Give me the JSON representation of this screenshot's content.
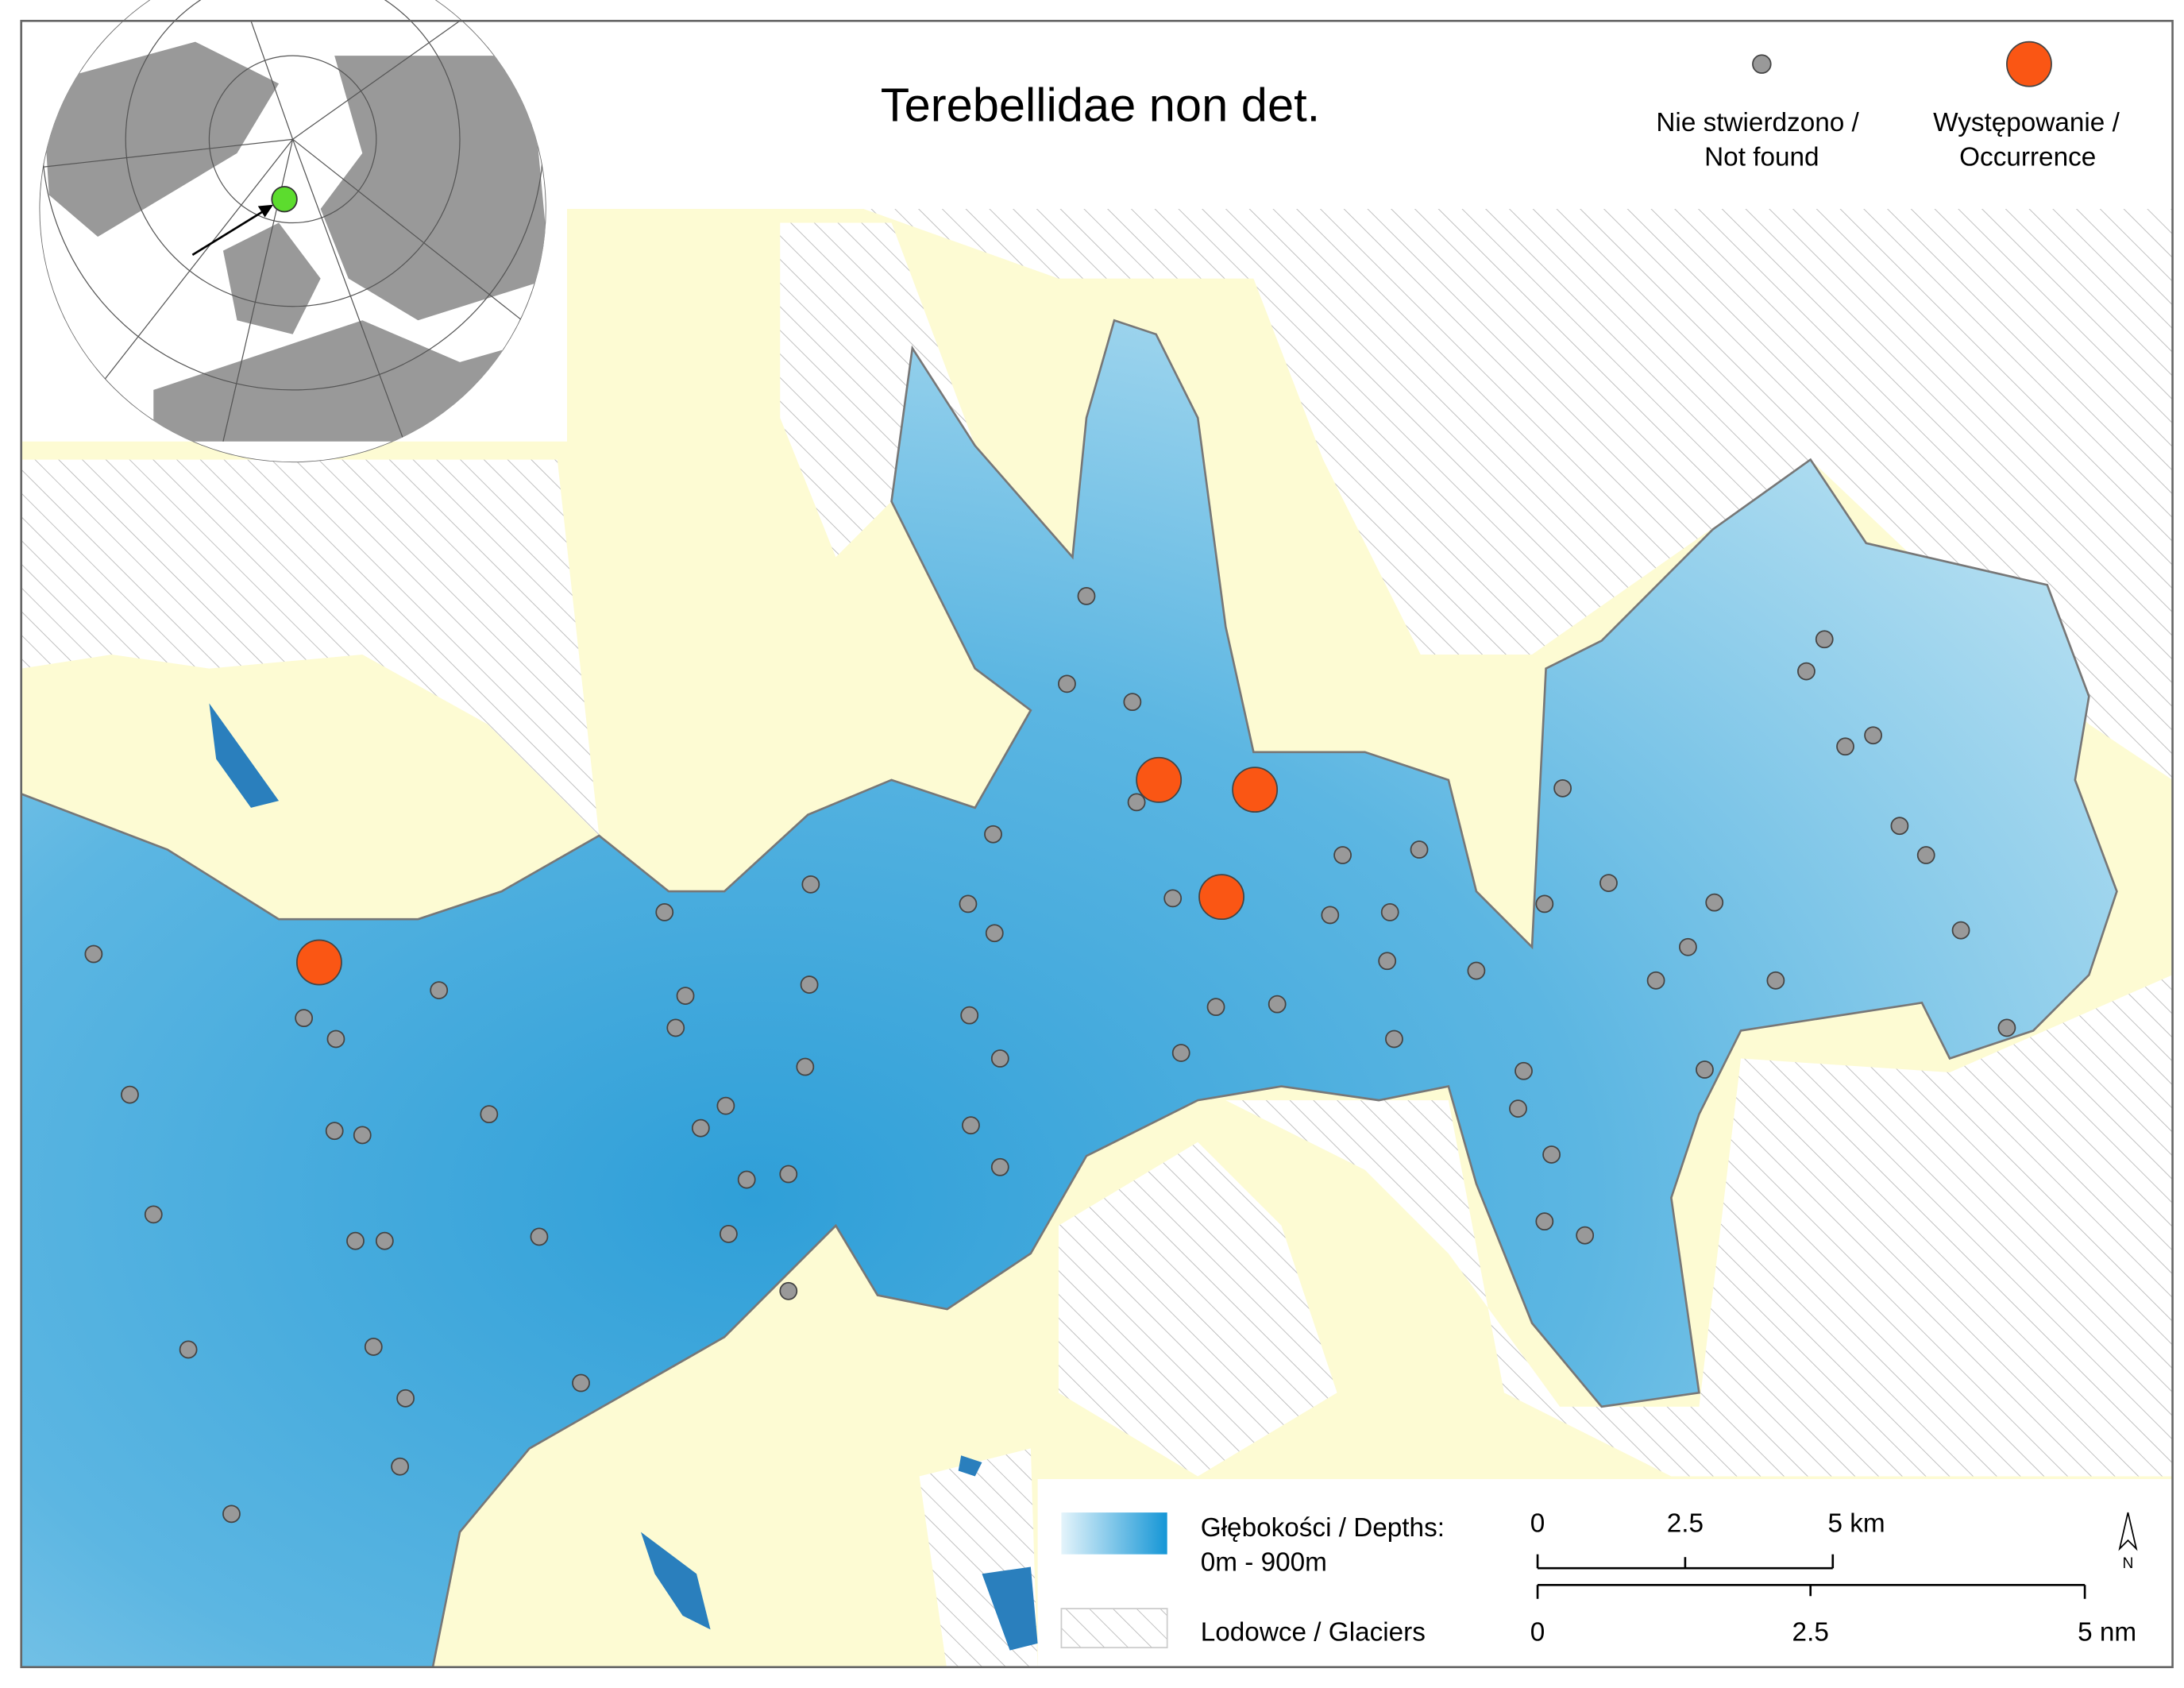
{
  "title": "Terebellidae non det.",
  "legend": {
    "not_found": [
      "Nie stwierdzono /",
      "Not found"
    ],
    "occurrence": [
      "Występowanie /",
      "Occurrence"
    ],
    "depths": [
      "Głębokości / Depths:",
      "0m - 900m"
    ],
    "glaciers": "Lodowce / Glaciers"
  },
  "scale": {
    "km": [
      "0",
      "2.5",
      "5 km"
    ],
    "nm": [
      "0",
      "2.5",
      "5 nm"
    ]
  },
  "north": "N"
}
